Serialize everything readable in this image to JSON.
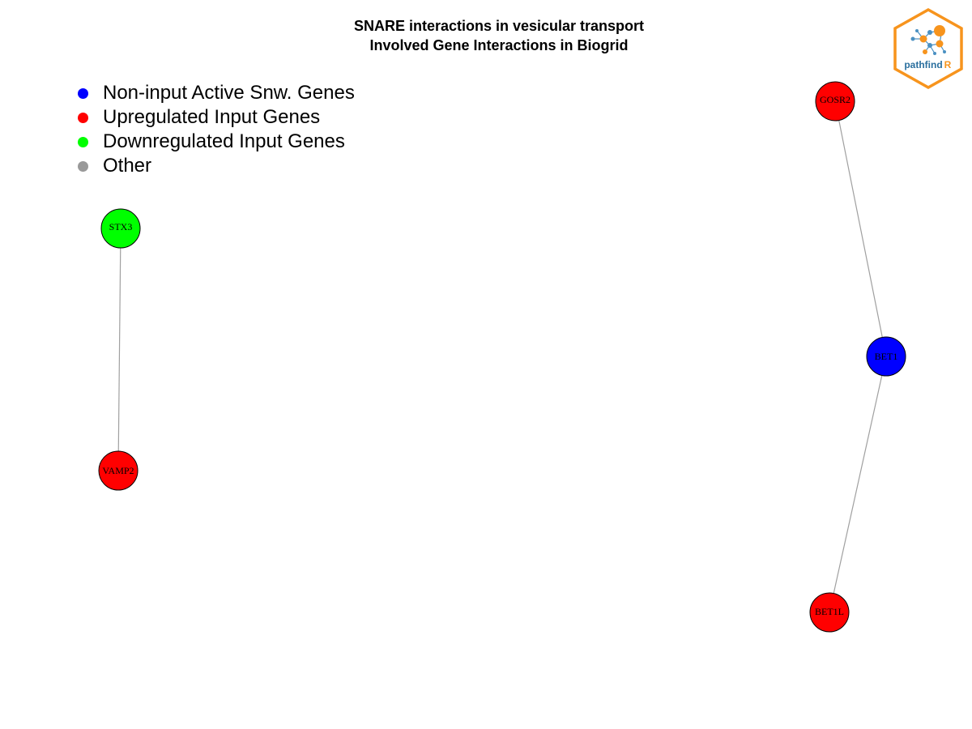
{
  "title": {
    "line1": "SNARE interactions in vesicular transport",
    "line2": "Involved Gene Interactions in Biogrid"
  },
  "legend": [
    {
      "label": "Non-input Active Snw. Genes",
      "color": "#0000ff"
    },
    {
      "label": "Upregulated Input Genes",
      "color": "#ff0000"
    },
    {
      "label": "Downregulated Input Genes",
      "color": "#00ff00"
    },
    {
      "label": "Other",
      "color": "#999999"
    }
  ],
  "nodes": {
    "stx3": {
      "label": "STX3",
      "color": "#00ff00"
    },
    "vamp2": {
      "label": "VAMP2",
      "color": "#ff0000"
    },
    "gosr2": {
      "label": "GOSR2",
      "color": "#ff0000"
    },
    "bet1": {
      "label": "BET1",
      "color": "#0000ff"
    },
    "bet1l": {
      "label": "BET1L",
      "color": "#ff0000"
    }
  },
  "edges": [
    {
      "from": "STX3",
      "to": "VAMP2"
    },
    {
      "from": "GOSR2",
      "to": "BET1"
    },
    {
      "from": "BET1",
      "to": "BET1L"
    }
  ],
  "logo": {
    "text_main": "pathfind",
    "text_accent": "R"
  }
}
